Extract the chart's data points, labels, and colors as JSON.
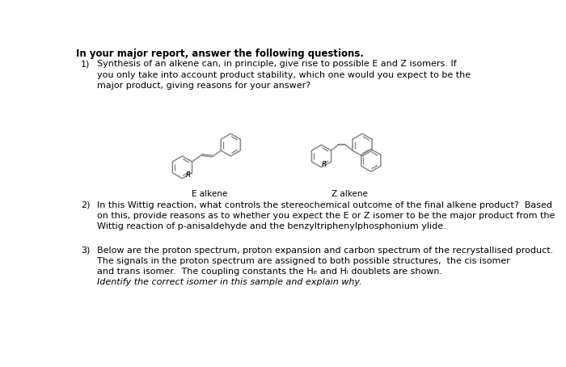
{
  "background_color": "#ffffff",
  "title": "In your major report, answer the following questions.",
  "title_fontsize": 8.5,
  "q1_num": "1)",
  "q1_body": "Synthesis of an alkene can, in principle, give rise to possible E and Z isomers. If\nyou only take into account product stability, which one would you expect to be the\nmajor product, giving reasons for your answer?",
  "q2_num": "2)",
  "q2_body": "In this Wittig reaction, what controls the stereochemical outcome of the final alkene product?  Based\non this, provide reasons as to whether you expect the E or Z isomer to be the major product from the\nWittig reaction of p-anisaldehyde and the benzyltriphenylphosphonium ylide.",
  "q3_num": "3)",
  "q3_body": "Below are the proton spectrum, proton expansion and carbon spectrum of the recrystallised product.\nThe signals in the proton spectrum are assigned to both possible structures,  the cis isomer\nand trans isomer.  The coupling constants the Hₑ and Hᵢ doublets are shown.",
  "q3_italic": "Identify the correct isomer in this sample and explain why.",
  "label_e": "E alkene",
  "label_z": "Z alkene",
  "label_r": "R",
  "text_color": "#000000",
  "struct_color": "#888888",
  "body_fontsize": 8.0,
  "label_fontsize": 7.5
}
